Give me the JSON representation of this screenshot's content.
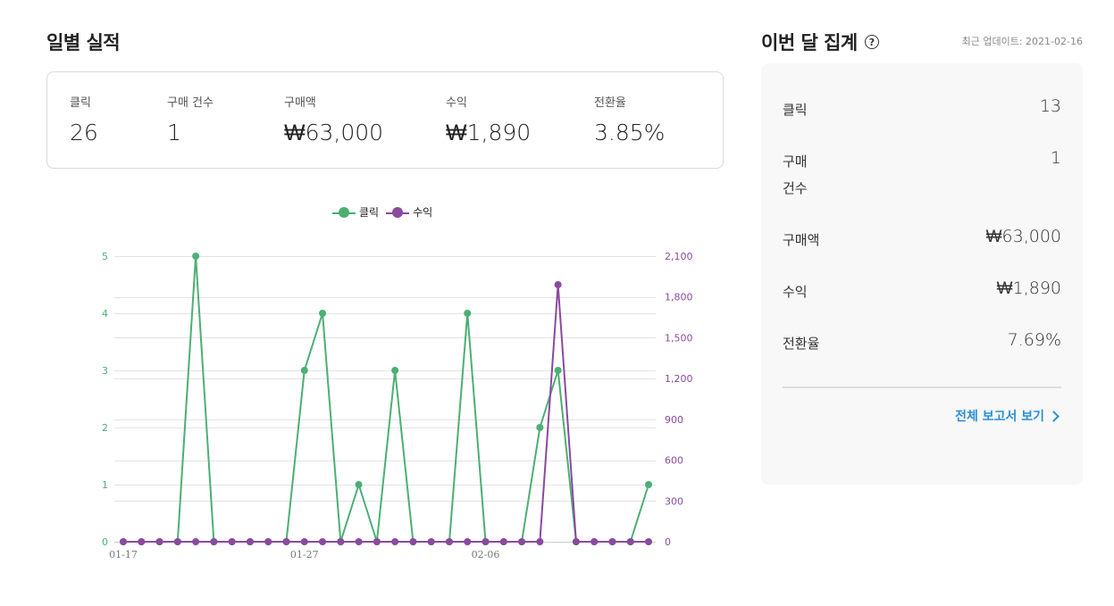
{
  "daily": {
    "title": "일별 실적",
    "stats": [
      {
        "label": "클릭",
        "value": "26"
      },
      {
        "label": "구매 건수",
        "value": "1"
      },
      {
        "label": "구매액",
        "value": "₩63,000"
      },
      {
        "label": "수익",
        "value": "₩1,890"
      },
      {
        "label": "전환율",
        "value": "3.85%"
      }
    ]
  },
  "legend": [
    {
      "name": "클릭",
      "color": "#4caf74"
    },
    {
      "name": "수익",
      "color": "#8a4a9e"
    }
  ],
  "chart_data": {
    "type": "line",
    "x": [
      "01-17",
      "01-18",
      "01-19",
      "01-20",
      "01-21",
      "01-22",
      "01-23",
      "01-24",
      "01-25",
      "01-26",
      "01-27",
      "01-28",
      "01-29",
      "01-30",
      "01-31",
      "02-01",
      "02-02",
      "02-03",
      "02-04",
      "02-05",
      "02-06",
      "02-07",
      "02-08",
      "02-09",
      "02-10",
      "02-11",
      "02-12",
      "02-13",
      "02-14",
      "02-15"
    ],
    "x_tick_labels": [
      "01-17",
      "01-27",
      "02-06"
    ],
    "series": [
      {
        "name": "클릭",
        "axis": "left",
        "color": "#4caf74",
        "values": [
          0,
          0,
          0,
          0,
          5,
          0,
          0,
          0,
          0,
          0,
          3,
          4,
          0,
          1,
          0,
          3,
          0,
          0,
          0,
          4,
          0,
          0,
          0,
          2,
          3,
          0,
          0,
          0,
          0,
          1
        ]
      },
      {
        "name": "수익",
        "axis": "right",
        "color": "#8a4a9e",
        "values": [
          0,
          0,
          0,
          0,
          0,
          0,
          0,
          0,
          0,
          0,
          0,
          0,
          0,
          0,
          0,
          0,
          0,
          0,
          0,
          0,
          0,
          0,
          0,
          0,
          1890,
          0,
          0,
          0,
          0,
          0
        ]
      }
    ],
    "y_left": {
      "min": 0,
      "max": 5,
      "ticks": [
        "0",
        "1",
        "2",
        "3",
        "4",
        "5"
      ]
    },
    "y_right": {
      "min": 0,
      "max": 2100,
      "ticks": [
        "0",
        "300",
        "600",
        "900",
        "1,200",
        "1,500",
        "1,800",
        "2,100"
      ]
    },
    "grid": true,
    "legend_position": "top-center"
  },
  "summary": {
    "title": "이번 달 집계",
    "updated": "최근 업데이트: 2021-02-16",
    "rows": [
      {
        "label": "클릭",
        "value": "13"
      },
      {
        "label": "구매 건수",
        "value": "1"
      },
      {
        "label": "구매액",
        "value": "₩63,000"
      },
      {
        "label": "수익",
        "value": "₩1,890"
      },
      {
        "label": "전환율",
        "value": "7.69%"
      }
    ],
    "report_link": "전체 보고서 보기"
  }
}
